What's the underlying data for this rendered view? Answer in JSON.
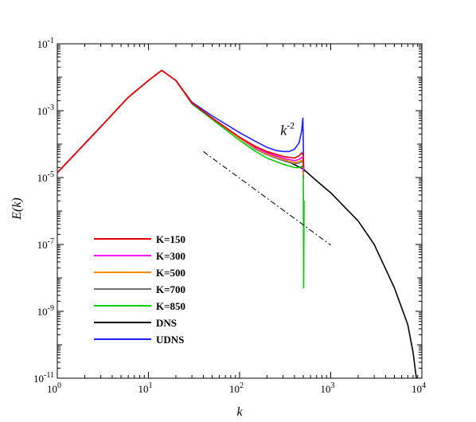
{
  "chart_data": {
    "type": "line",
    "xlabel": "k",
    "ylabel": "E(k)",
    "xscale": "log",
    "yscale": "log",
    "xlim": [
      1,
      10000
    ],
    "ylim": [
      1e-11,
      0.1
    ],
    "grid": false,
    "legend_position": "lower-left",
    "x_tick_labels": [
      {
        "value": 1,
        "mant": "10",
        "exp": "0"
      },
      {
        "value": 10,
        "mant": "10",
        "exp": "1"
      },
      {
        "value": 100,
        "mant": "10",
        "exp": "2"
      },
      {
        "value": 1000,
        "mant": "10",
        "exp": "3"
      },
      {
        "value": 10000,
        "mant": "10",
        "exp": "4"
      }
    ],
    "y_tick_labels": [
      {
        "value": 0.1,
        "mant": "10",
        "exp": "-1"
      },
      {
        "value": 0.001,
        "mant": "10",
        "exp": "-3"
      },
      {
        "value": 1e-05,
        "mant": "10",
        "exp": "-5"
      },
      {
        "value": 1e-07,
        "mant": "10",
        "exp": "-7"
      },
      {
        "value": 1e-09,
        "mant": "10",
        "exp": "-9"
      },
      {
        "value": 1e-11,
        "mant": "10",
        "exp": "-11"
      }
    ],
    "annotation": {
      "base": "k",
      "exp": "-2",
      "label_at": [
        280,
        0.00019
      ],
      "line_x": [
        40,
        1000
      ],
      "line_y": [
        6e-05,
        9.6e-08
      ]
    },
    "series": [
      {
        "name": "K=150",
        "color": "#e00000",
        "x": [
          1,
          3,
          6,
          10,
          14,
          20,
          30,
          50,
          100,
          150,
          200,
          300,
          400,
          450,
          480,
          500,
          502
        ],
        "y": [
          1.4e-05,
          0.00033,
          0.0025,
          0.008,
          0.016,
          0.008,
          0.0017,
          0.0006,
          0.00016,
          8.5e-05,
          6e-05,
          4.3e-05,
          3.8e-05,
          4.5e-05,
          5.5e-05,
          4.5e-05,
          2e-05
        ]
      },
      {
        "name": "K=300",
        "color": "#ff00ff",
        "x": [
          1,
          3,
          6,
          10,
          14,
          20,
          30,
          50,
          100,
          150,
          200,
          300,
          400,
          450,
          480,
          500,
          502
        ],
        "y": [
          1.4e-05,
          0.00033,
          0.0025,
          0.008,
          0.016,
          0.008,
          0.0017,
          0.0006,
          0.00016,
          8e-05,
          5.5e-05,
          3.8e-05,
          3.2e-05,
          3.5e-05,
          4e-05,
          3.5e-05,
          1.5e-05
        ]
      },
      {
        "name": "K=500",
        "color": "#ff8c00",
        "x": [
          1,
          3,
          6,
          10,
          14,
          20,
          30,
          50,
          100,
          150,
          200,
          300,
          400,
          450,
          480,
          500,
          502
        ],
        "y": [
          1.4e-05,
          0.00033,
          0.0025,
          0.008,
          0.016,
          0.008,
          0.0017,
          0.0006,
          0.00015,
          7.5e-05,
          5e-05,
          3.5e-05,
          2.8e-05,
          3e-05,
          3.3e-05,
          3e-05,
          1.2e-05
        ]
      },
      {
        "name": "K=700",
        "color": "#707070",
        "x": [
          1,
          3,
          6,
          10,
          14,
          20,
          30,
          50,
          100,
          150,
          200,
          300,
          400,
          450,
          480,
          500,
          502
        ],
        "y": [
          1.4e-05,
          0.00033,
          0.0025,
          0.008,
          0.016,
          0.008,
          0.0017,
          0.0006,
          0.00015,
          7e-05,
          4.8e-05,
          3.2e-05,
          2.6e-05,
          2.7e-05,
          3e-05,
          2.8e-05,
          1e-05
        ]
      },
      {
        "name": "K=850",
        "color": "#00cc00",
        "x": [
          1,
          3,
          6,
          10,
          14,
          20,
          30,
          50,
          100,
          150,
          200,
          300,
          400,
          450,
          480,
          500,
          502,
          505,
          510
        ],
        "y": [
          1.4e-05,
          0.00033,
          0.0025,
          0.008,
          0.016,
          0.008,
          0.0016,
          0.00055,
          0.00013,
          6e-05,
          3.8e-05,
          2.5e-05,
          2e-05,
          2e-05,
          2.2e-05,
          2e-05,
          1e-06,
          5e-09,
          2e-06
        ]
      },
      {
        "name": "DNS",
        "color": "#000000",
        "x": [
          1,
          3,
          6,
          10,
          14,
          20,
          30,
          50,
          100,
          150,
          200,
          300,
          500,
          700,
          1000,
          2000,
          3000,
          5000,
          7000,
          8000,
          8700
        ],
        "y": [
          1.4e-05,
          0.00033,
          0.0025,
          0.008,
          0.016,
          0.008,
          0.0017,
          0.0006,
          0.000155,
          8e-05,
          5.5e-05,
          3.6e-05,
          1.8e-05,
          8e-06,
          3.5e-06,
          5e-07,
          1e-07,
          5e-09,
          4e-10,
          6e-11,
          1e-11
        ]
      },
      {
        "name": "UDNS",
        "color": "#2020ff",
        "x": [
          1,
          3,
          6,
          10,
          14,
          20,
          30,
          50,
          100,
          150,
          200,
          250,
          300,
          350,
          400,
          450,
          480,
          495,
          500,
          503,
          508
        ],
        "y": [
          1.4e-05,
          0.00033,
          0.0025,
          0.008,
          0.016,
          0.008,
          0.0018,
          0.0007,
          0.00022,
          0.00012,
          8e-05,
          6.5e-05,
          6e-05,
          6e-05,
          7e-05,
          0.00011,
          0.00025,
          0.0006,
          0.00012,
          3e-05,
          1.5e-05
        ]
      }
    ]
  }
}
